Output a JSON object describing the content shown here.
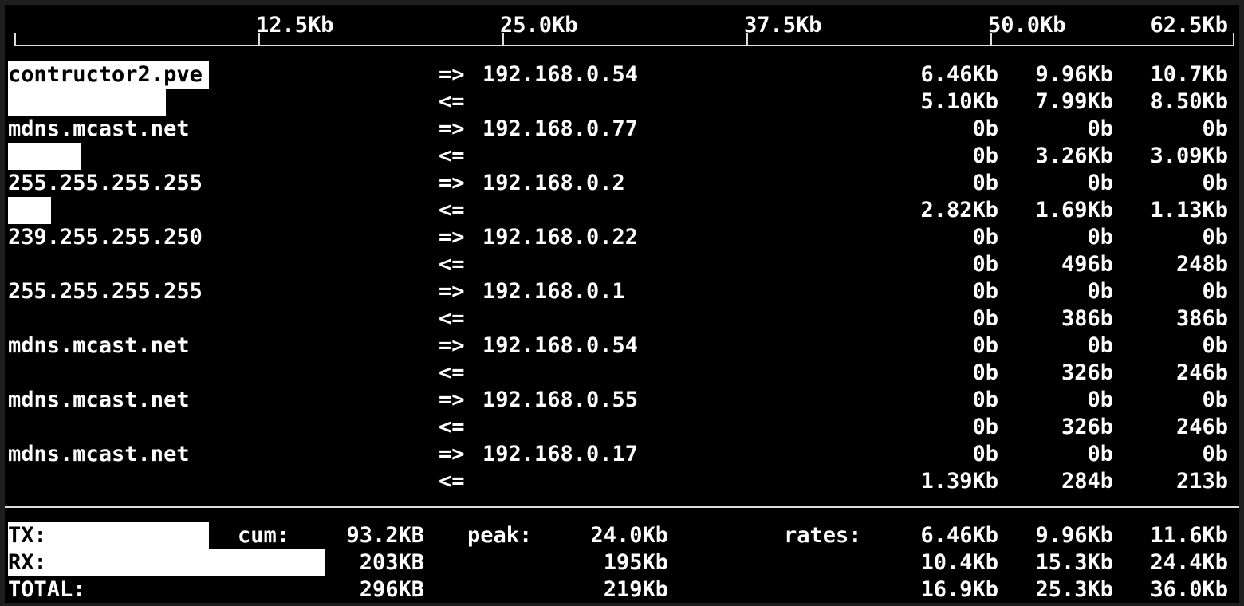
{
  "scale": {
    "max_kb": 62.5,
    "labels": [
      "12.5Kb",
      "25.0Kb",
      "37.5Kb",
      "50.0Kb",
      "62.5Kb"
    ]
  },
  "flows": [
    {
      "host": "contructor2.pve",
      "dest": "192.168.0.54",
      "tx": [
        "6.46Kb",
        "9.96Kb",
        "10.7Kb"
      ],
      "rx": [
        "5.10Kb",
        "7.99Kb",
        "8.50Kb"
      ],
      "tx_bar_kb": 10.3,
      "rx_bar_kb": 8.1
    },
    {
      "host": "mdns.mcast.net",
      "dest": "192.168.0.77",
      "tx": [
        "0b",
        "0b",
        "0b"
      ],
      "rx": [
        "0b",
        "3.26Kb",
        "3.09Kb"
      ],
      "tx_bar_kb": 0,
      "rx_bar_kb": 3.7
    },
    {
      "host": "255.255.255.255",
      "dest": "192.168.0.2",
      "tx": [
        "0b",
        "0b",
        "0b"
      ],
      "rx": [
        "2.82Kb",
        "1.69Kb",
        "1.13Kb"
      ],
      "tx_bar_kb": 0,
      "rx_bar_kb": 2.2
    },
    {
      "host": "239.255.255.250",
      "dest": "192.168.0.22",
      "tx": [
        "0b",
        "0b",
        "0b"
      ],
      "rx": [
        "0b",
        "496b",
        "248b"
      ],
      "tx_bar_kb": 0,
      "rx_bar_kb": 0
    },
    {
      "host": "255.255.255.255",
      "dest": "192.168.0.1",
      "tx": [
        "0b",
        "0b",
        "0b"
      ],
      "rx": [
        "0b",
        "386b",
        "386b"
      ],
      "tx_bar_kb": 0,
      "rx_bar_kb": 0
    },
    {
      "host": "mdns.mcast.net",
      "dest": "192.168.0.54",
      "tx": [
        "0b",
        "0b",
        "0b"
      ],
      "rx": [
        "0b",
        "326b",
        "246b"
      ],
      "tx_bar_kb": 0,
      "rx_bar_kb": 0
    },
    {
      "host": "mdns.mcast.net",
      "dest": "192.168.0.55",
      "tx": [
        "0b",
        "0b",
        "0b"
      ],
      "rx": [
        "0b",
        "326b",
        "246b"
      ],
      "tx_bar_kb": 0,
      "rx_bar_kb": 0
    },
    {
      "host": "mdns.mcast.net",
      "dest": "192.168.0.17",
      "tx": [
        "0b",
        "0b",
        "0b"
      ],
      "rx": [
        "1.39Kb",
        "284b",
        "213b"
      ],
      "tx_bar_kb": 0,
      "rx_bar_kb": 0
    }
  ],
  "arrows": {
    "out": "=>",
    "in": "<="
  },
  "totals": {
    "labels": {
      "cum": "cum:",
      "peak": "peak:",
      "rates": "rates:"
    },
    "rows": [
      {
        "label": "TX:",
        "cum": "93.2KB",
        "peak": "24.0Kb",
        "rates": [
          "6.46Kb",
          "9.96Kb",
          "11.6Kb"
        ],
        "bar_kb": 10.3
      },
      {
        "label": "RX:",
        "cum": "203KB",
        "peak": "195Kb",
        "rates": [
          "10.4Kb",
          "15.3Kb",
          "24.4Kb"
        ],
        "bar_kb": 16.2
      },
      {
        "label": "TOTAL:",
        "cum": "296KB",
        "peak": "219Kb",
        "rates": [
          "16.9Kb",
          "25.3Kb",
          "36.0Kb"
        ],
        "bar_kb": 0
      }
    ]
  }
}
